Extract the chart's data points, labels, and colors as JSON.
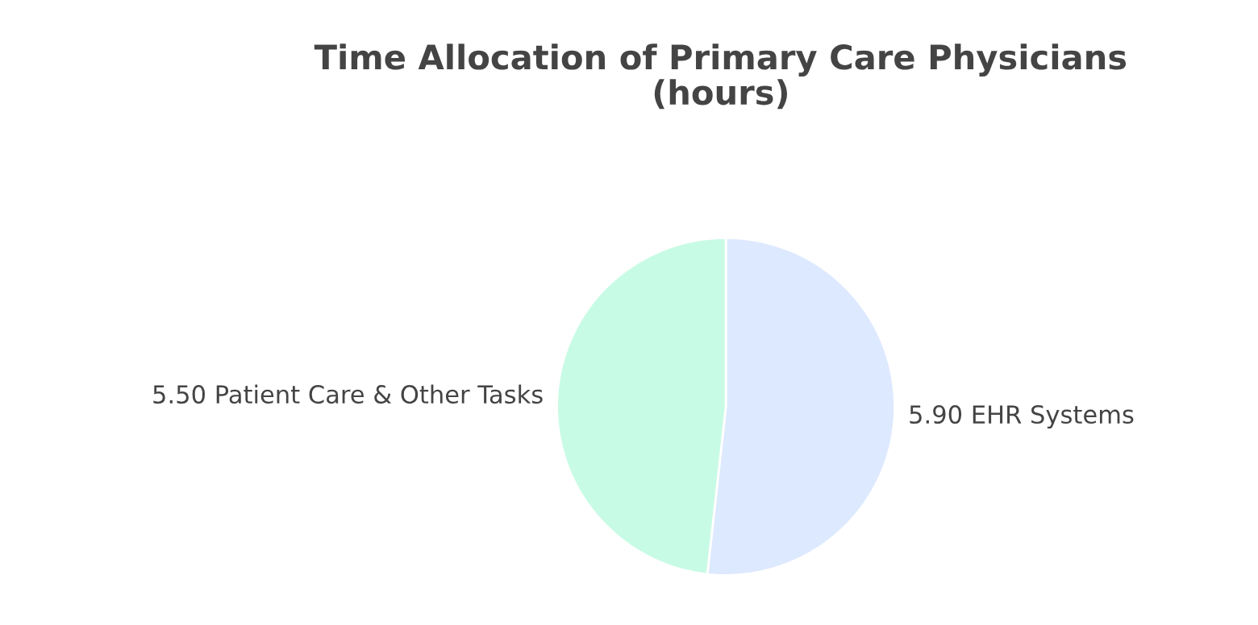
{
  "chart_data": {
    "type": "pie",
    "title": "Time Allocation of Primary Care Physicians\n(hours)",
    "categories": [
      "EHR Systems",
      "Patient Care & Other Tasks"
    ],
    "values": [
      5.9,
      5.5
    ],
    "value_labels": [
      "5.90",
      "5.50"
    ],
    "colors": [
      "#dde9fe",
      "#c8fbe5"
    ]
  }
}
